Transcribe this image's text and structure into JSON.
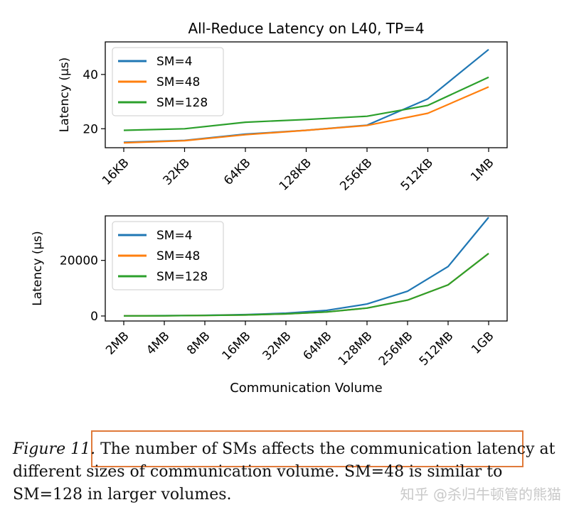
{
  "chart_data": [
    {
      "type": "line",
      "title": "All-Reduce Latency on L40, TP=4",
      "xlabel": "",
      "ylabel": "Latency (μs)",
      "categories": [
        "16KB",
        "32KB",
        "64KB",
        "128KB",
        "256KB",
        "512KB",
        "1MB"
      ],
      "ylim": [
        13,
        52
      ],
      "yticks": [
        20,
        40
      ],
      "legend_position": "top-left",
      "series": [
        {
          "name": "SM=4",
          "color": "#1f77b4",
          "values": [
            15,
            15.7,
            18,
            19.4,
            21.3,
            31,
            49.2
          ]
        },
        {
          "name": "SM=48",
          "color": "#ff7f0e",
          "values": [
            14.8,
            15.6,
            17.8,
            19.4,
            21.2,
            25.7,
            35.4
          ]
        },
        {
          "name": "SM=128",
          "color": "#2ca02c",
          "values": [
            19.4,
            20,
            22.4,
            23.4,
            24.6,
            28.6,
            39
          ]
        }
      ]
    },
    {
      "type": "line",
      "title": "",
      "xlabel": "Communication Volume",
      "ylabel": "Latency (μs)",
      "categories": [
        "2MB",
        "4MB",
        "8MB",
        "16MB",
        "32MB",
        "64MB",
        "128MB",
        "256MB",
        "512MB",
        "1GB"
      ],
      "ylim": [
        -1800,
        36000
      ],
      "yticks": [
        0,
        20000
      ],
      "legend_position": "top-left",
      "series": [
        {
          "name": "SM=4",
          "color": "#1f77b4",
          "values": [
            60,
            120,
            250,
            500,
            1000,
            2000,
            4300,
            8900,
            17800,
            35500
          ]
        },
        {
          "name": "SM=48",
          "color": "#ff7f0e",
          "values": [
            50,
            90,
            180,
            380,
            750,
            1450,
            2850,
            5700,
            11200,
            22500
          ]
        },
        {
          "name": "SM=128",
          "color": "#2ca02c",
          "values": [
            50,
            90,
            180,
            380,
            750,
            1450,
            2850,
            5700,
            11200,
            22500
          ]
        }
      ]
    }
  ],
  "caption": {
    "label": "Figure 11.",
    "text": " The number of SMs affects the communication latency at different sizes of communication volume. SM=48 is similar to SM=128 in larger volumes."
  },
  "watermark": "知乎 @杀归牛顿管的熊猫"
}
